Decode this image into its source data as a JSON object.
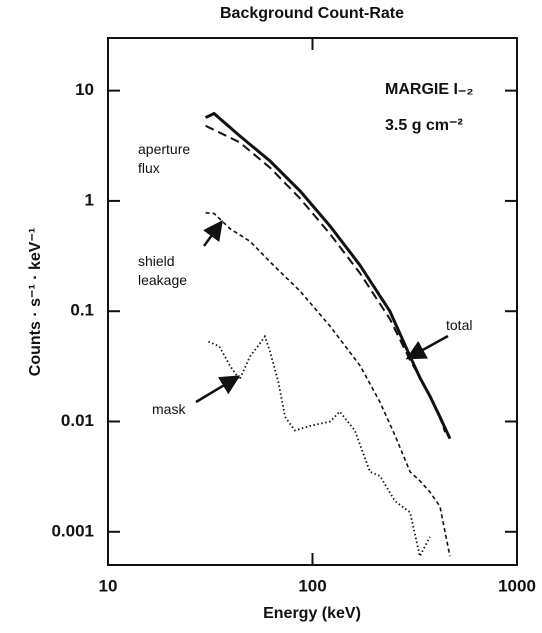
{
  "chart_data": {
    "type": "line",
    "title": "Background  Count-Rate",
    "xlabel": "Energy    (keV)",
    "ylabel": "Counts · s⁻¹ · keV⁻¹",
    "annotations": [
      "MARGIE I₋₂",
      "3.5 g cm⁻²"
    ],
    "xscale": "log",
    "yscale": "log",
    "xlim": [
      10,
      1000
    ],
    "ylim": [
      0.0005,
      30
    ],
    "xticks": [
      10,
      100,
      1000
    ],
    "yticks": [
      10,
      1,
      0.1,
      0.01,
      0.001
    ],
    "series": [
      {
        "name": "total",
        "color": "#111111",
        "style": "solid",
        "x": [
          30,
          33,
          44,
          62,
          87,
          122,
          171,
          239,
          300,
          335,
          375,
          420,
          470
        ],
        "values": [
          5.7,
          6.2,
          3.9,
          2.3,
          1.23,
          0.59,
          0.26,
          0.1,
          0.039,
          0.025,
          0.017,
          0.011,
          0.007
        ]
      },
      {
        "name": "aperture flux",
        "color": "#111111",
        "style": "dashed",
        "x": [
          30,
          44,
          62,
          87,
          122,
          171,
          239,
          300,
          340,
          375,
          420,
          445
        ],
        "values": [
          4.8,
          3.4,
          2.0,
          1.05,
          0.5,
          0.22,
          0.085,
          0.036,
          0.024,
          0.017,
          0.011,
          0.008
        ]
      },
      {
        "name": "shield leakage",
        "color": "#111111",
        "style": "shortdash",
        "x": [
          30,
          33,
          39.5,
          49.5,
          62,
          87,
          122,
          171,
          213,
          253,
          300,
          335,
          375,
          420,
          470
        ],
        "values": [
          0.78,
          0.77,
          0.56,
          0.43,
          0.28,
          0.152,
          0.073,
          0.032,
          0.0152,
          0.0075,
          0.0035,
          0.0029,
          0.0023,
          0.0017,
          0.0006
        ]
      },
      {
        "name": "mask",
        "color": "#111111",
        "style": "dotted",
        "x": [
          31,
          35,
          39.5,
          44,
          49.5,
          54,
          58.5,
          62,
          68,
          73.5,
          82,
          97,
          122,
          136,
          161,
          191,
          214,
          253,
          300,
          335,
          375
        ],
        "values": [
          0.053,
          0.048,
          0.032,
          0.024,
          0.039,
          0.048,
          0.059,
          0.043,
          0.023,
          0.011,
          0.0083,
          0.0091,
          0.01,
          0.0123,
          0.0083,
          0.0035,
          0.0032,
          0.0019,
          0.0015,
          0.0006,
          0.0009
        ]
      }
    ]
  }
}
